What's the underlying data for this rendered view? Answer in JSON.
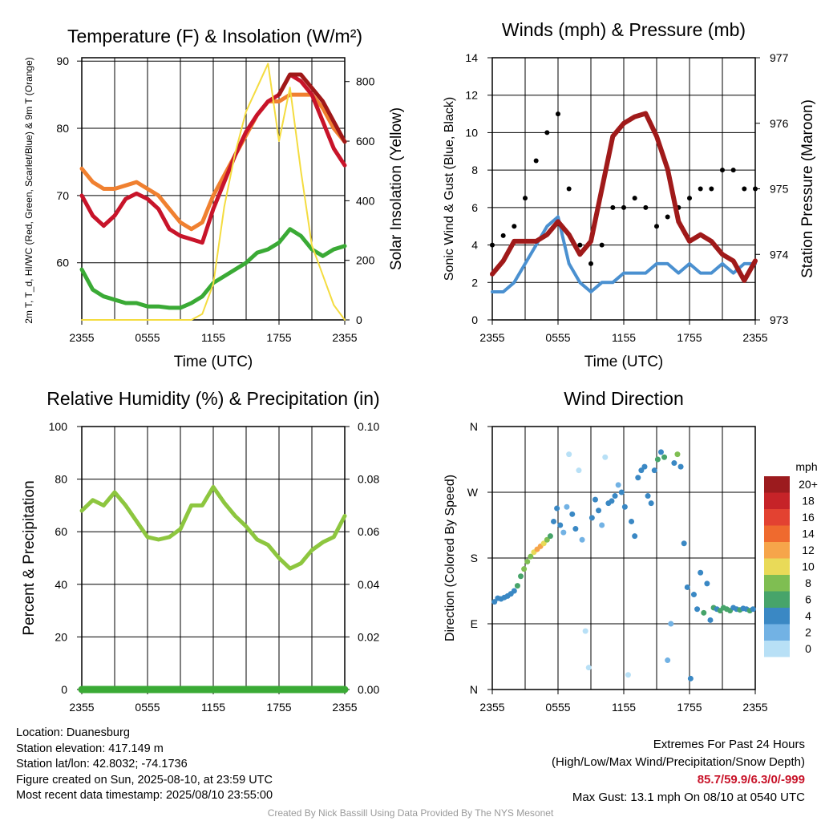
{
  "chart_data": [
    {
      "type": "line",
      "title": "Temperature (F) & Insolation (W/m²)",
      "xlabel": "Time (UTC)",
      "ylabel": "2m T, T_d, HI/WC (Red, Green, Scarlet/Blue) & 9m T (Orange)",
      "y2label": "Solar Insolation (Yellow)",
      "x_ticks": [
        "2355",
        "0555",
        "1155",
        "1755",
        "2355"
      ],
      "ylim": [
        51.5,
        90.5
      ],
      "y_ticks": [
        60,
        70,
        80,
        90
      ],
      "y2lim": [
        0,
        880
      ],
      "y2_ticks": [
        0,
        200,
        400,
        600,
        800
      ],
      "grid": true,
      "x_hours": [
        0,
        1,
        2,
        3,
        4,
        5,
        6,
        7,
        8,
        9,
        10,
        11,
        12,
        13,
        14,
        15,
        16,
        17,
        18,
        19,
        20,
        21,
        22,
        23,
        24
      ],
      "series": [
        {
          "name": "9m T",
          "color": "#f08030",
          "axis": "left",
          "values": [
            74,
            72,
            71,
            71,
            71.5,
            72,
            71,
            70,
            68,
            66,
            65,
            66,
            70,
            73,
            76,
            79,
            82,
            84,
            84,
            85,
            85,
            85,
            83,
            80,
            78
          ]
        },
        {
          "name": "2m T",
          "color": "#c8142a",
          "axis": "left",
          "values": [
            70,
            67,
            65.5,
            67,
            69.5,
            70.3,
            69.5,
            68,
            65,
            64,
            63.5,
            63,
            68,
            72,
            76,
            79.5,
            82,
            84,
            85,
            88,
            87,
            85,
            81,
            77,
            74.5
          ]
        },
        {
          "name": "HI/WC",
          "color": "#a01818",
          "axis": "left",
          "values": [
            null,
            null,
            null,
            null,
            null,
            null,
            null,
            null,
            null,
            null,
            null,
            null,
            null,
            null,
            null,
            null,
            null,
            null,
            85,
            88,
            88,
            86,
            84,
            81,
            78
          ]
        },
        {
          "name": "T_d",
          "color": "#3aaa35",
          "axis": "left",
          "values": [
            59,
            56,
            55,
            54.5,
            54,
            54,
            53.5,
            53.5,
            53.3,
            53.3,
            54,
            55,
            57,
            58,
            59,
            60,
            61.5,
            62,
            63,
            65,
            64,
            62,
            61,
            62,
            62.5
          ]
        },
        {
          "name": "Solar Insolation",
          "color": "#f4dc40",
          "axis": "right",
          "values": [
            0,
            0,
            0,
            0,
            0,
            0,
            0,
            0,
            0,
            0,
            0,
            20,
            120,
            380,
            560,
            700,
            780,
            860,
            600,
            780,
            500,
            250,
            150,
            50,
            0
          ]
        }
      ]
    },
    {
      "type": "line",
      "title": "Winds (mph) & Pressure (mb)",
      "xlabel": "Time (UTC)",
      "ylabel": "Sonic Wind & Gust (Blue, Black)",
      "y2label": "Station Pressure (Maroon)",
      "x_ticks": [
        "2355",
        "0555",
        "1155",
        "1755",
        "2355"
      ],
      "ylim": [
        0,
        14
      ],
      "y_ticks": [
        0,
        2,
        4,
        6,
        8,
        10,
        12,
        14
      ],
      "y2lim": [
        973,
        977
      ],
      "y2_ticks": [
        973,
        974,
        975,
        976,
        977
      ],
      "grid": true,
      "x_hours": [
        0,
        1,
        2,
        3,
        4,
        5,
        6,
        7,
        8,
        9,
        10,
        11,
        12,
        13,
        14,
        15,
        16,
        17,
        18,
        19,
        20,
        21,
        22,
        23,
        24
      ],
      "series": [
        {
          "name": "Sonic Wind",
          "color": "#4a90d0",
          "axis": "left",
          "values": [
            1.5,
            1.5,
            2,
            3,
            4,
            5,
            5.5,
            3,
            2,
            1.5,
            2,
            2,
            2.5,
            2.5,
            2.5,
            3,
            3,
            2.5,
            3,
            2.5,
            2.5,
            3,
            2.5,
            3,
            3
          ]
        },
        {
          "name": "Gust",
          "color": "#000000",
          "axis": "left",
          "values": [
            4,
            4.5,
            5,
            6.5,
            8.5,
            10,
            11,
            7,
            4,
            3,
            4,
            6,
            6,
            6.5,
            6,
            5,
            5.5,
            6,
            6.5,
            7,
            7,
            8,
            8,
            7,
            7
          ]
        },
        {
          "name": "Station Pressure",
          "color": "#a01a1a",
          "axis": "right",
          "values": [
            973.7,
            973.9,
            974.2,
            974.2,
            974.2,
            974.3,
            974.5,
            974.3,
            974.0,
            974.2,
            975.0,
            975.8,
            976.0,
            976.1,
            976.15,
            975.8,
            975.3,
            974.5,
            974.2,
            974.3,
            974.2,
            974.0,
            973.9,
            973.6,
            973.9
          ]
        }
      ]
    },
    {
      "type": "line",
      "title": "Relative Humidity (%) & Precipitation (in)",
      "xlabel": "",
      "ylabel": "Percent & Precipitation",
      "x_ticks": [
        "2355",
        "0555",
        "1155",
        "1755",
        "2355"
      ],
      "ylim": [
        0,
        100
      ],
      "y_ticks": [
        0,
        20,
        40,
        60,
        80,
        100
      ],
      "y2lim": [
        0,
        0.1
      ],
      "y2_ticks": [
        "0.00",
        "0.02",
        "0.04",
        "0.06",
        "0.08",
        "0.10"
      ],
      "grid": true,
      "x_hours": [
        0,
        1,
        2,
        3,
        4,
        5,
        6,
        7,
        8,
        9,
        10,
        11,
        12,
        13,
        14,
        15,
        16,
        17,
        18,
        19,
        20,
        21,
        22,
        23,
        24
      ],
      "series": [
        {
          "name": "Relative Humidity",
          "color": "#8dc63f",
          "axis": "left",
          "values": [
            68,
            72,
            70,
            75,
            70,
            64,
            58,
            57,
            58,
            61,
            70,
            70,
            77,
            71,
            66,
            62,
            57,
            55,
            50,
            46,
            48,
            53,
            56,
            58,
            66
          ]
        },
        {
          "name": "Precipitation",
          "color": "#3aaa35",
          "axis": "right",
          "values": [
            0,
            0,
            0,
            0,
            0,
            0,
            0,
            0,
            0,
            0,
            0,
            0,
            0,
            0,
            0,
            0,
            0,
            0,
            0,
            0,
            0,
            0,
            0,
            0,
            0
          ]
        }
      ]
    },
    {
      "type": "scatter",
      "title": "Wind Direction",
      "ylabel": "Direction (Colored By Speed)",
      "x_ticks": [
        "2355",
        "0555",
        "1155",
        "1755",
        "2355"
      ],
      "y_ticks": [
        "N",
        "E",
        "S",
        "W",
        "N"
      ],
      "ylim": [
        0,
        360
      ],
      "grid": true,
      "colorbar": {
        "title": "mph",
        "labels": [
          "20+",
          "18",
          "16",
          "14",
          "12",
          "10",
          "8",
          "6",
          "4",
          "2",
          "0"
        ],
        "colors": [
          "#9c1b1e",
          "#c62328",
          "#e34231",
          "#ef6a2e",
          "#f6a54a",
          "#e9da58",
          "#7fbe52",
          "#47a46a",
          "#3a88c4",
          "#72b2e4",
          "#b8e0f6"
        ]
      },
      "points": [
        {
          "x": 0.2,
          "y": 120,
          "s": 2
        },
        {
          "x": 0.5,
          "y": 125,
          "s": 2
        },
        {
          "x": 0.8,
          "y": 124,
          "s": 2
        },
        {
          "x": 1.1,
          "y": 126,
          "s": 2
        },
        {
          "x": 1.4,
          "y": 128,
          "s": 2
        },
        {
          "x": 1.7,
          "y": 131,
          "s": 2
        },
        {
          "x": 2.0,
          "y": 135,
          "s": 2
        },
        {
          "x": 2.3,
          "y": 142,
          "s": 3
        },
        {
          "x": 2.6,
          "y": 155,
          "s": 3
        },
        {
          "x": 2.9,
          "y": 165,
          "s": 4
        },
        {
          "x": 3.2,
          "y": 175,
          "s": 4
        },
        {
          "x": 3.5,
          "y": 182,
          "s": 4
        },
        {
          "x": 3.8,
          "y": 188,
          "s": 5
        },
        {
          "x": 4.1,
          "y": 192,
          "s": 6
        },
        {
          "x": 4.4,
          "y": 196,
          "s": 6
        },
        {
          "x": 4.7,
          "y": 200,
          "s": 5
        },
        {
          "x": 5.0,
          "y": 205,
          "s": 4
        },
        {
          "x": 5.3,
          "y": 210,
          "s": 3
        },
        {
          "x": 5.6,
          "y": 230,
          "s": 2
        },
        {
          "x": 5.9,
          "y": 248,
          "s": 2
        },
        {
          "x": 6.2,
          "y": 225,
          "s": 2
        },
        {
          "x": 6.5,
          "y": 215,
          "s": 1
        },
        {
          "x": 6.8,
          "y": 250,
          "s": 1
        },
        {
          "x": 7.0,
          "y": 322,
          "s": 0
        },
        {
          "x": 7.3,
          "y": 240,
          "s": 2
        },
        {
          "x": 7.6,
          "y": 220,
          "s": 2
        },
        {
          "x": 7.9,
          "y": 300,
          "s": 0
        },
        {
          "x": 8.2,
          "y": 205,
          "s": 1
        },
        {
          "x": 8.5,
          "y": 80,
          "s": 0
        },
        {
          "x": 8.8,
          "y": 30,
          "s": 0
        },
        {
          "x": 9.1,
          "y": 235,
          "s": 2
        },
        {
          "x": 9.4,
          "y": 260,
          "s": 2
        },
        {
          "x": 9.7,
          "y": 245,
          "s": 2
        },
        {
          "x": 10.0,
          "y": 225,
          "s": 1
        },
        {
          "x": 10.3,
          "y": 318,
          "s": 0
        },
        {
          "x": 10.6,
          "y": 255,
          "s": 2
        },
        {
          "x": 10.9,
          "y": 258,
          "s": 2
        },
        {
          "x": 11.2,
          "y": 265,
          "s": 2
        },
        {
          "x": 11.5,
          "y": 280,
          "s": 1
        },
        {
          "x": 11.8,
          "y": 270,
          "s": 2
        },
        {
          "x": 12.1,
          "y": 250,
          "s": 2
        },
        {
          "x": 12.4,
          "y": 20,
          "s": 0
        },
        {
          "x": 12.7,
          "y": 230,
          "s": 2
        },
        {
          "x": 13.0,
          "y": 210,
          "s": 2
        },
        {
          "x": 13.3,
          "y": 290,
          "s": 2
        },
        {
          "x": 13.6,
          "y": 300,
          "s": 2
        },
        {
          "x": 13.9,
          "y": 305,
          "s": 2
        },
        {
          "x": 14.2,
          "y": 265,
          "s": 2
        },
        {
          "x": 14.5,
          "y": 255,
          "s": 2
        },
        {
          "x": 14.8,
          "y": 300,
          "s": 2
        },
        {
          "x": 15.1,
          "y": 315,
          "s": 3
        },
        {
          "x": 15.4,
          "y": 325,
          "s": 2
        },
        {
          "x": 15.7,
          "y": 318,
          "s": 3
        },
        {
          "x": 16.0,
          "y": 40,
          "s": 1
        },
        {
          "x": 16.3,
          "y": 90,
          "s": 1
        },
        {
          "x": 16.6,
          "y": 310,
          "s": 2
        },
        {
          "x": 16.9,
          "y": 322,
          "s": 4
        },
        {
          "x": 17.2,
          "y": 305,
          "s": 2
        },
        {
          "x": 17.5,
          "y": 200,
          "s": 2
        },
        {
          "x": 17.8,
          "y": 140,
          "s": 2
        },
        {
          "x": 18.1,
          "y": 15,
          "s": 2
        },
        {
          "x": 18.4,
          "y": 130,
          "s": 2
        },
        {
          "x": 18.7,
          "y": 110,
          "s": 2
        },
        {
          "x": 19.0,
          "y": 160,
          "s": 2
        },
        {
          "x": 19.3,
          "y": 105,
          "s": 3
        },
        {
          "x": 19.6,
          "y": 145,
          "s": 2
        },
        {
          "x": 19.9,
          "y": 95,
          "s": 2
        },
        {
          "x": 20.2,
          "y": 112,
          "s": 3
        },
        {
          "x": 20.5,
          "y": 110,
          "s": 2
        },
        {
          "x": 20.8,
          "y": 108,
          "s": 3
        },
        {
          "x": 21.1,
          "y": 112,
          "s": 3
        },
        {
          "x": 21.4,
          "y": 110,
          "s": 3
        },
        {
          "x": 21.7,
          "y": 108,
          "s": 3
        },
        {
          "x": 22.0,
          "y": 112,
          "s": 2
        },
        {
          "x": 22.3,
          "y": 110,
          "s": 2
        },
        {
          "x": 22.6,
          "y": 109,
          "s": 3
        },
        {
          "x": 22.9,
          "y": 111,
          "s": 2
        },
        {
          "x": 23.2,
          "y": 110,
          "s": 2
        },
        {
          "x": 23.5,
          "y": 108,
          "s": 3
        },
        {
          "x": 23.8,
          "y": 110,
          "s": 2
        }
      ]
    }
  ],
  "info": {
    "location": "Location: Duanesburg",
    "elevation": "Station elevation: 417.149 m",
    "latlon": "Station lat/lon: 42.8032; -74.1736",
    "created": "Figure created on Sun, 2025-08-10, at 23:59 UTC",
    "recent": "Most recent data timestamp: 2025/08/10 23:55:00"
  },
  "extremes": {
    "title": "Extremes For Past 24 Hours",
    "subtitle": "(High/Low/Max Wind/Precipitation/Snow Depth)",
    "values": "85.7/59.9/6.3/0/-999",
    "values_color": "#c8142a",
    "gust": "Max Gust: 13.1 mph On 08/10 at 0540 UTC"
  },
  "footer": "Created By Nick Bassill Using Data Provided By The NYS Mesonet"
}
